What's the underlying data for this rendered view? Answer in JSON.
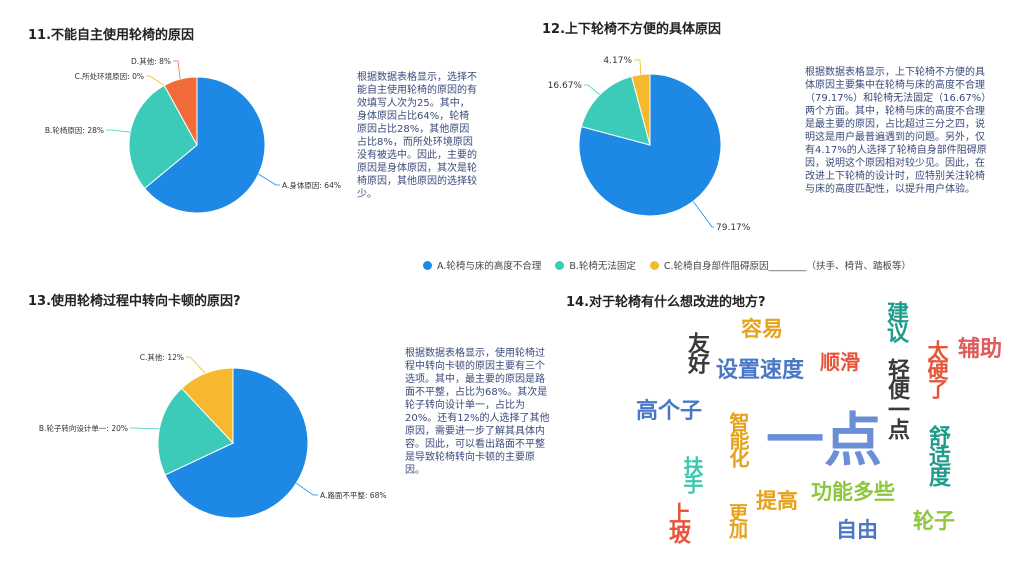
{
  "charts": {
    "q11": {
      "title": "11.不能自主使用轮椅的原因",
      "description": "根据数据表格显示，选择不能自主使用轮椅的原因的有效填写人次为25。其中，身体原因占比64%，轮椅原因占比28%，其他原因占比8%，而所处环境原因没有被选中。因此，主要的原因是身体原因，其次是轮椅原因，其他原因的选择较少。"
    },
    "q12": {
      "title": "12.上下轮椅不方便的具体原因",
      "description": "根据数据表格显示，上下轮椅不方便的具体原因主要集中在轮椅与床的高度不合理（79.17%）和轮椅无法固定（16.67%）两个方面。其中，轮椅与床的高度不合理是最主要的原因，占比超过三分之四，说明这是用户最普遍遇到的问题。另外，仅有4.17%的人选择了轮椅自身部件阻碍原因，说明这个原因相对较少见。因此，在改进上下轮椅的设计时，应特别关注轮椅与床的高度匹配性，以提升用户体验。",
      "legend": [
        "A.轮椅与床的高度不合理",
        "B.轮椅无法固定",
        "C.轮椅自身部件阻碍原因________（扶手、椅背、踏板等）"
      ]
    },
    "q13": {
      "title": "13.使用轮椅过程中转向卡顿的原因?",
      "description": "根据数据表格显示，使用轮椅过程中转向卡顿的原因主要有三个选项。其中，最主要的原因是路面不平整，占比为68%。其次是轮子转向设计单一，占比为20%。还有12%的人选择了其他原因，需要进一步了解其具体内容。因此，可以看出路面不平整是导致轮椅转向卡顿的主要原因。"
    },
    "q14": {
      "title": "14.对于轮椅有什么想改进的地方?"
    }
  },
  "chart_data": [
    {
      "type": "pie",
      "title": "11.不能自主使用轮椅的原因",
      "slices": [
        {
          "label": "A.身体原因: 64%",
          "value": 64,
          "color": "#1e88e5"
        },
        {
          "label": "B.轮椅原因: 28%",
          "value": 28,
          "color": "#3ccbb8"
        },
        {
          "label": "C.所处环境原因: 0%",
          "value": 0,
          "color": "#f5b82e"
        },
        {
          "label": "D.其他: 8%",
          "value": 8,
          "color": "#f26b3a"
        }
      ]
    },
    {
      "type": "pie",
      "title": "12.上下轮椅不方便的具体原因",
      "slices": [
        {
          "label": "79.17%",
          "value": 79.17,
          "color": "#1e88e5"
        },
        {
          "label": "16.67%",
          "value": 16.67,
          "color": "#3ccbb8"
        },
        {
          "label": "4.17%",
          "value": 4.17,
          "color": "#f5b82e"
        }
      ]
    },
    {
      "type": "pie",
      "title": "13.使用轮椅过程中转向卡顿的原因?",
      "slices": [
        {
          "label": "A.路面不平整: 68%",
          "value": 68,
          "color": "#1e88e5"
        },
        {
          "label": "B.轮子转向设计单一: 20%",
          "value": 20,
          "color": "#3ccbb8"
        },
        {
          "label": "C.其他: 12%",
          "value": 12,
          "color": "#f5b82e"
        }
      ]
    }
  ],
  "word_cloud": [
    {
      "text": "一点",
      "color": "#6b8fd6"
    },
    {
      "text": "设置速度",
      "color": "#4a78c8"
    },
    {
      "text": "顺滑",
      "color": "#e8543a"
    },
    {
      "text": "高个子",
      "color": "#4a78c8"
    },
    {
      "text": "容易",
      "color": "#e6a21a"
    },
    {
      "text": "辅助",
      "color": "#e05a5a"
    },
    {
      "text": "友好",
      "color": "#3a3a3a"
    },
    {
      "text": "建议",
      "color": "#1f9d8a"
    },
    {
      "text": "轻便一点",
      "color": "#3a3a3a"
    },
    {
      "text": "太硬了",
      "color": "#e8543a"
    },
    {
      "text": "舒适度",
      "color": "#1f9d8a"
    },
    {
      "text": "智能化",
      "color": "#e6a21a"
    },
    {
      "text": "扶手",
      "color": "#3cc7b0"
    },
    {
      "text": "提高",
      "color": "#e6a21a"
    },
    {
      "text": "功能多些",
      "color": "#8dc63f"
    },
    {
      "text": "轮子",
      "color": "#8dc63f"
    },
    {
      "text": "自由",
      "color": "#4a78c8"
    },
    {
      "text": "上坡",
      "color": "#e8543a"
    },
    {
      "text": "更加",
      "color": "#e6a21a"
    }
  ]
}
